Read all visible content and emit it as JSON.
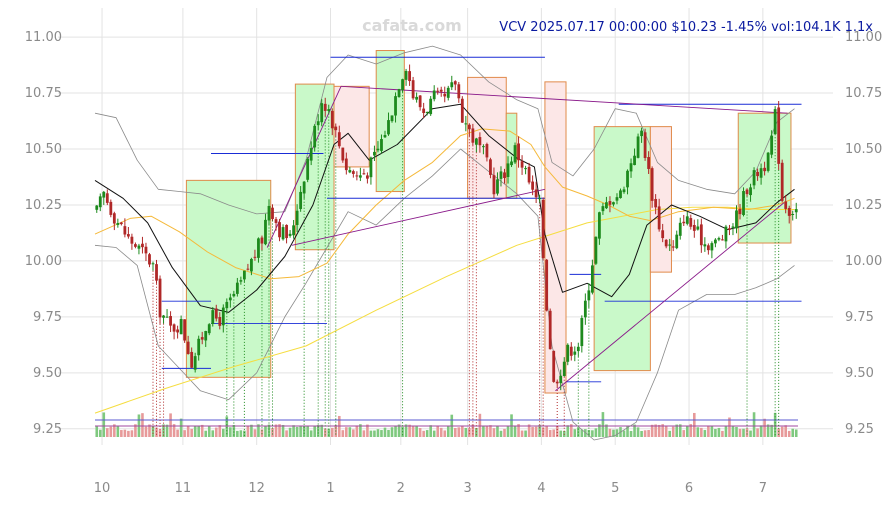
{
  "chart_data": {
    "type": "candlestick",
    "title": "VCV 2025.07.17 00:00:00 $10.23 -1.45% vol:104.1K 1.1x",
    "watermark": "cafata.com",
    "ylim": [
      9.2,
      11.13
    ],
    "y_ticks": [
      {
        "value": 11.0,
        "label": "11.00"
      },
      {
        "value": 10.75,
        "label": "10.75"
      },
      {
        "value": 10.5,
        "label": "10.50"
      },
      {
        "value": 10.25,
        "label": "10.25"
      },
      {
        "value": 10.0,
        "label": "10.00"
      },
      {
        "value": 9.75,
        "label": "9.75"
      },
      {
        "value": 9.5,
        "label": "9.50"
      },
      {
        "value": 9.25,
        "label": "9.25"
      }
    ],
    "x_range": [
      0,
      200
    ],
    "x_ticks": [
      {
        "x": 2,
        "label": "10"
      },
      {
        "x": 25,
        "label": "11"
      },
      {
        "x": 46,
        "label": "12"
      },
      {
        "x": 67,
        "label": "1"
      },
      {
        "x": 87,
        "label": "2"
      },
      {
        "x": 106,
        "label": "3"
      },
      {
        "x": 127,
        "label": "4"
      },
      {
        "x": 148,
        "label": "5"
      },
      {
        "x": 169,
        "label": "6"
      },
      {
        "x": 190,
        "label": "7"
      }
    ],
    "keypoints": [
      [
        0,
        10.22
      ],
      [
        2,
        10.3
      ],
      [
        5,
        10.2
      ],
      [
        9,
        10.1
      ],
      [
        13,
        10.04
      ],
      [
        16,
        9.98
      ],
      [
        18,
        9.78
      ],
      [
        21,
        9.7
      ],
      [
        24,
        9.72
      ],
      [
        27,
        9.55
      ],
      [
        29,
        9.62
      ],
      [
        32,
        9.75
      ],
      [
        35,
        9.74
      ],
      [
        38,
        9.82
      ],
      [
        41,
        9.9
      ],
      [
        44,
        10.0
      ],
      [
        47,
        10.1
      ],
      [
        49,
        10.26
      ],
      [
        52,
        10.14
      ],
      [
        55,
        10.1
      ],
      [
        58,
        10.32
      ],
      [
        61,
        10.52
      ],
      [
        64,
        10.72
      ],
      [
        66,
        10.68
      ],
      [
        68,
        10.57
      ],
      [
        71,
        10.42
      ],
      [
        74,
        10.38
      ],
      [
        77,
        10.4
      ],
      [
        80,
        10.5
      ],
      [
        83,
        10.62
      ],
      [
        86,
        10.8
      ],
      [
        88,
        10.88
      ],
      [
        90,
        10.74
      ],
      [
        93,
        10.67
      ],
      [
        96,
        10.73
      ],
      [
        99,
        10.72
      ],
      [
        102,
        10.8
      ],
      [
        104,
        10.65
      ],
      [
        107,
        10.55
      ],
      [
        110,
        10.48
      ],
      [
        113,
        10.33
      ],
      [
        116,
        10.4
      ],
      [
        119,
        10.5
      ],
      [
        122,
        10.4
      ],
      [
        124,
        10.3
      ],
      [
        126,
        10.25
      ],
      [
        128,
        9.8
      ],
      [
        130,
        9.45
      ],
      [
        132,
        9.52
      ],
      [
        134,
        9.6
      ],
      [
        137,
        9.63
      ],
      [
        140,
        9.9
      ],
      [
        143,
        10.2
      ],
      [
        146,
        10.28
      ],
      [
        149,
        10.3
      ],
      [
        152,
        10.45
      ],
      [
        155,
        10.58
      ],
      [
        158,
        10.3
      ],
      [
        161,
        10.1
      ],
      [
        164,
        10.05
      ],
      [
        167,
        10.2
      ],
      [
        170,
        10.14
      ],
      [
        173,
        10.08
      ],
      [
        176,
        10.08
      ],
      [
        179,
        10.12
      ],
      [
        182,
        10.2
      ],
      [
        185,
        10.33
      ],
      [
        188,
        10.4
      ],
      [
        191,
        10.45
      ],
      [
        193,
        10.65
      ],
      [
        195,
        10.28
      ],
      [
        197,
        10.23
      ]
    ],
    "ma_black": [
      [
        0,
        10.36
      ],
      [
        8,
        10.28
      ],
      [
        15,
        10.17
      ],
      [
        22,
        9.97
      ],
      [
        30,
        9.8
      ],
      [
        38,
        9.77
      ],
      [
        46,
        9.87
      ],
      [
        54,
        10.02
      ],
      [
        62,
        10.25
      ],
      [
        68,
        10.52
      ],
      [
        72,
        10.57
      ],
      [
        78,
        10.45
      ],
      [
        86,
        10.52
      ],
      [
        96,
        10.68
      ],
      [
        104,
        10.7
      ],
      [
        112,
        10.56
      ],
      [
        120,
        10.46
      ],
      [
        125,
        10.42
      ],
      [
        128,
        10.12
      ],
      [
        133,
        9.86
      ],
      [
        140,
        9.9
      ],
      [
        147,
        9.84
      ],
      [
        152,
        9.94
      ],
      [
        157,
        10.16
      ],
      [
        164,
        10.25
      ],
      [
        172,
        10.2
      ],
      [
        180,
        10.14
      ],
      [
        188,
        10.17
      ],
      [
        194,
        10.26
      ],
      [
        199,
        10.32
      ]
    ],
    "ma_orange": [
      [
        0,
        10.12
      ],
      [
        10,
        10.19
      ],
      [
        16,
        10.2
      ],
      [
        24,
        10.13
      ],
      [
        32,
        10.04
      ],
      [
        40,
        9.97
      ],
      [
        50,
        9.92
      ],
      [
        58,
        9.93
      ],
      [
        66,
        9.99
      ],
      [
        72,
        10.12
      ],
      [
        80,
        10.25
      ],
      [
        88,
        10.36
      ],
      [
        96,
        10.44
      ],
      [
        104,
        10.56
      ],
      [
        110,
        10.59
      ],
      [
        118,
        10.58
      ],
      [
        124,
        10.52
      ],
      [
        128,
        10.42
      ],
      [
        133,
        10.33
      ],
      [
        140,
        10.29
      ],
      [
        146,
        10.25
      ],
      [
        152,
        10.2
      ],
      [
        158,
        10.18
      ],
      [
        166,
        10.22
      ],
      [
        176,
        10.24
      ],
      [
        186,
        10.23
      ],
      [
        194,
        10.25
      ],
      [
        199,
        10.28
      ]
    ],
    "ma_yellow": [
      [
        0,
        9.32
      ],
      [
        20,
        9.43
      ],
      [
        40,
        9.53
      ],
      [
        60,
        9.62
      ],
      [
        80,
        9.78
      ],
      [
        100,
        9.93
      ],
      [
        110,
        10.0
      ],
      [
        120,
        10.07
      ],
      [
        130,
        10.12
      ],
      [
        140,
        10.17
      ],
      [
        150,
        10.2
      ],
      [
        160,
        10.23
      ],
      [
        170,
        10.24
      ],
      [
        180,
        10.24
      ],
      [
        190,
        10.23
      ],
      [
        199,
        10.23
      ]
    ],
    "bb_upper": [
      [
        0,
        10.66
      ],
      [
        6,
        10.64
      ],
      [
        12,
        10.45
      ],
      [
        18,
        10.32
      ],
      [
        24,
        10.31
      ],
      [
        30,
        10.3
      ],
      [
        38,
        10.25
      ],
      [
        46,
        10.21
      ],
      [
        54,
        10.22
      ],
      [
        60,
        10.45
      ],
      [
        66,
        10.82
      ],
      [
        72,
        10.92
      ],
      [
        80,
        10.88
      ],
      [
        88,
        10.93
      ],
      [
        96,
        10.96
      ],
      [
        104,
        10.92
      ],
      [
        112,
        10.8
      ],
      [
        120,
        10.72
      ],
      [
        126,
        10.68
      ],
      [
        130,
        10.44
      ],
      [
        136,
        10.38
      ],
      [
        142,
        10.5
      ],
      [
        148,
        10.68
      ],
      [
        154,
        10.66
      ],
      [
        160,
        10.44
      ],
      [
        166,
        10.36
      ],
      [
        174,
        10.32
      ],
      [
        182,
        10.3
      ],
      [
        188,
        10.4
      ],
      [
        194,
        10.62
      ],
      [
        199,
        10.68
      ]
    ],
    "bb_lower": [
      [
        0,
        10.07
      ],
      [
        6,
        10.06
      ],
      [
        12,
        9.98
      ],
      [
        18,
        9.62
      ],
      [
        24,
        9.52
      ],
      [
        30,
        9.42
      ],
      [
        38,
        9.38
      ],
      [
        46,
        9.5
      ],
      [
        54,
        9.75
      ],
      [
        60,
        9.9
      ],
      [
        66,
        10.06
      ],
      [
        72,
        10.22
      ],
      [
        80,
        10.16
      ],
      [
        88,
        10.28
      ],
      [
        96,
        10.38
      ],
      [
        104,
        10.5
      ],
      [
        112,
        10.4
      ],
      [
        120,
        10.3
      ],
      [
        126,
        10.2
      ],
      [
        130,
        9.62
      ],
      [
        136,
        9.28
      ],
      [
        142,
        9.2
      ],
      [
        148,
        9.22
      ],
      [
        154,
        9.28
      ],
      [
        160,
        9.5
      ],
      [
        166,
        9.78
      ],
      [
        174,
        9.85
      ],
      [
        182,
        9.85
      ],
      [
        188,
        9.88
      ],
      [
        194,
        9.92
      ],
      [
        199,
        9.98
      ]
    ],
    "zones": [
      {
        "x0": 26,
        "x1": 50,
        "y0": 9.48,
        "y1": 10.36,
        "kind": "up"
      },
      {
        "x0": 57,
        "x1": 68,
        "y0": 10.05,
        "y1": 10.79,
        "kind": "up"
      },
      {
        "x0": 68,
        "x1": 78,
        "y0": 10.42,
        "y1": 10.78,
        "kind": "down"
      },
      {
        "x0": 80,
        "x1": 88,
        "y0": 10.31,
        "y1": 10.94,
        "kind": "up"
      },
      {
        "x0": 106,
        "x1": 117,
        "y0": 10.28,
        "y1": 10.82,
        "kind": "down"
      },
      {
        "x0": 117,
        "x1": 120,
        "y0": 10.28,
        "y1": 10.66,
        "kind": "up"
      },
      {
        "x0": 128,
        "x1": 134,
        "y0": 9.41,
        "y1": 10.8,
        "kind": "down"
      },
      {
        "x0": 142,
        "x1": 158,
        "y0": 9.51,
        "y1": 10.6,
        "kind": "up"
      },
      {
        "x0": 158,
        "x1": 164,
        "y0": 9.95,
        "y1": 10.6,
        "kind": "down"
      },
      {
        "x0": 183,
        "x1": 198,
        "y0": 10.08,
        "y1": 10.66,
        "kind": "up"
      }
    ],
    "h_levels": [
      {
        "x0": 33,
        "x1": 65,
        "y": 10.48
      },
      {
        "x0": 67,
        "x1": 128,
        "y": 10.91
      },
      {
        "x0": 66,
        "x1": 128,
        "y": 10.28
      },
      {
        "x0": 19,
        "x1": 33,
        "y": 9.82
      },
      {
        "x0": 33,
        "x1": 66,
        "y": 9.72
      },
      {
        "x0": 19,
        "x1": 33,
        "y": 9.52
      },
      {
        "x0": 135,
        "x1": 144,
        "y": 9.94
      },
      {
        "x0": 134,
        "x1": 144,
        "y": 9.46
      },
      {
        "x0": 145,
        "x1": 201,
        "y": 9.82
      },
      {
        "x0": 149,
        "x1": 201,
        "y": 10.7
      }
    ],
    "trend_lines": [
      {
        "x0": 49,
        "y0": 10.06,
        "x1": 70,
        "y1": 10.78
      },
      {
        "x0": 70,
        "y0": 10.78,
        "x1": 197,
        "y1": 10.66
      },
      {
        "x0": 56,
        "y0": 10.07,
        "x1": 128,
        "y1": 10.32
      },
      {
        "x0": 131,
        "y0": 9.42,
        "x1": 196,
        "y1": 10.26
      }
    ],
    "marker_lines": [
      {
        "x": 16,
        "kind": "down"
      },
      {
        "x": 17,
        "kind": "down"
      },
      {
        "x": 18,
        "kind": "down"
      },
      {
        "x": 19,
        "kind": "down"
      },
      {
        "x": 37,
        "kind": "up"
      },
      {
        "x": 39,
        "kind": "up"
      },
      {
        "x": 42,
        "kind": "up"
      },
      {
        "x": 47,
        "kind": "up"
      },
      {
        "x": 49,
        "kind": "up"
      },
      {
        "x": 50,
        "kind": "up"
      },
      {
        "x": 59,
        "kind": "up"
      },
      {
        "x": 63,
        "kind": "up"
      },
      {
        "x": 65,
        "kind": "up"
      },
      {
        "x": 66,
        "kind": "up"
      },
      {
        "x": 68,
        "kind": "up"
      },
      {
        "x": 87,
        "kind": "up"
      },
      {
        "x": 106,
        "kind": "down"
      },
      {
        "x": 107,
        "kind": "down"
      },
      {
        "x": 108,
        "kind": "down"
      },
      {
        "x": 126,
        "kind": "down"
      },
      {
        "x": 127,
        "kind": "down"
      },
      {
        "x": 131,
        "kind": "down"
      },
      {
        "x": 133,
        "kind": "down"
      },
      {
        "x": 137,
        "kind": "up"
      },
      {
        "x": 140,
        "kind": "up"
      },
      {
        "x": 185,
        "kind": "up"
      },
      {
        "x": 193,
        "kind": "up"
      },
      {
        "x": 194,
        "kind": "up"
      }
    ],
    "colors": {
      "up": "#1d8a1d",
      "down": "#b02828",
      "zone_up_fill": "#c9f9c9",
      "zone_down_fill": "#fce7e7",
      "zone_border": "#e08a4a",
      "ma_black": "#111111",
      "ma_orange": "#f5b93a",
      "ma_yellow": "#f5dd40",
      "bollinger": "#8a8a8a",
      "levels": "#1a2dd6",
      "trend": "#8a1a8a",
      "grid": "#e3e3e3",
      "title": "#0a1aa0"
    }
  }
}
